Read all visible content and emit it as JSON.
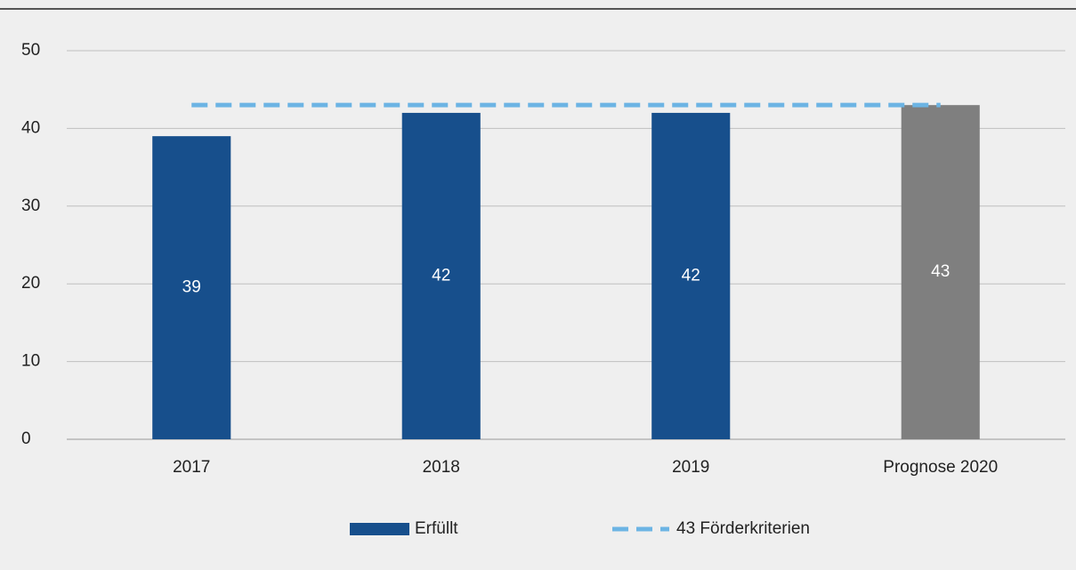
{
  "chart_data": {
    "type": "bar",
    "categories": [
      "2017",
      "2018",
      "2019",
      "Prognose 2020"
    ],
    "series": [
      {
        "name": "Erfüllt",
        "type": "bar",
        "color": "#174f8c",
        "colors": [
          "#174f8c",
          "#174f8c",
          "#174f8c",
          "#7f7f7f"
        ],
        "values": [
          39,
          42,
          42,
          43
        ]
      },
      {
        "name": "43 Förderkriterien",
        "type": "line",
        "color": "#6cb4e4",
        "dashed": true,
        "values": [
          43,
          43,
          43,
          43
        ]
      }
    ],
    "ylim": [
      0,
      50
    ],
    "yticks": [
      0,
      10,
      20,
      30,
      40,
      50
    ],
    "grid": true,
    "legend": "bottom"
  }
}
